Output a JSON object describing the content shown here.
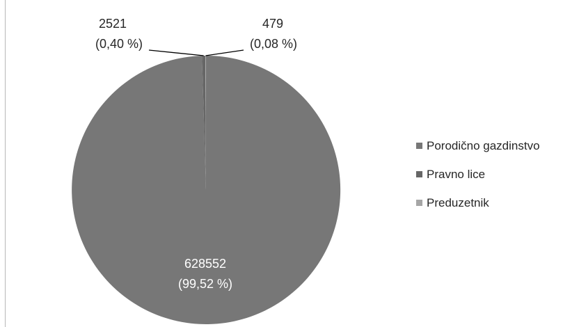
{
  "chart_data": {
    "type": "pie",
    "title": "",
    "slices": [
      {
        "label": "Porodično gazdinstvo",
        "value": 628552,
        "percent_label": "(99,52 %)",
        "color": "#777777"
      },
      {
        "label": "Pravno lice",
        "value": 2521,
        "percent_label": "(0,40 %)",
        "color": "#666666"
      },
      {
        "label": "Preduzetnik",
        "value": 479,
        "percent_label": "(0,08 %)",
        "color": "#a6a6a6"
      }
    ],
    "legend_position": "right"
  }
}
